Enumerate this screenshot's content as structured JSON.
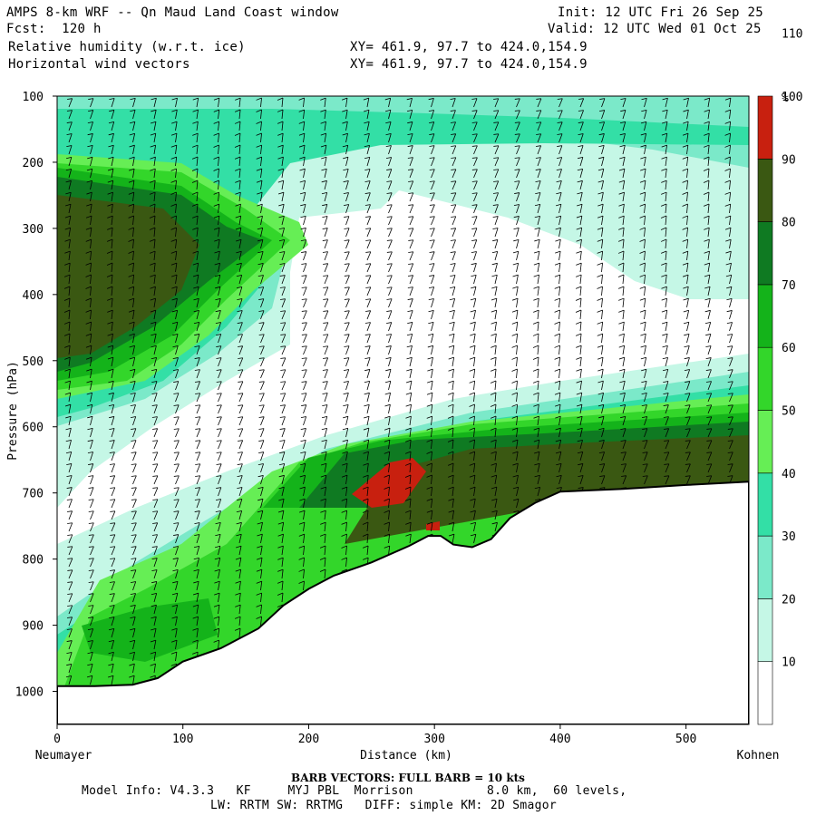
{
  "header": {
    "title": "AMPS 8-km WRF -- Qn Maud Land Coast window",
    "init": "Init: 12 UTC Fri 26 Sep 25",
    "fcst": "Fcst:  120 h",
    "valid": "Valid: 12 UTC Wed 01 Oct 25",
    "field1": "Relative humidity (w.r.t. ice)",
    "field1_xy": "XY= 461.9, 97.7 to 424.0,154.9",
    "field2": "Horizontal wind vectors",
    "field2_xy": "XY= 461.9, 97.7 to 424.0,154.9"
  },
  "footer": {
    "barb_note": "BARB VECTORS:  FULL BARB = 10 kts",
    "model_info": "Model Info: V4.3.3   KF     MYJ PBL  Morrison          8.0 km,  60 levels,",
    "model_info2": "LW: RRTM SW: RRTMG   DIFF: simple KM: 2D Smagor"
  },
  "colors": {
    "c0_30": "#ffffff",
    "c30_40": "#c5f7e6",
    "c40_50": "#7be9c9",
    "c50_60": "#33dfa6",
    "c60_70": "#66ee55",
    "c70_80": "#33d62a",
    "c80_90": "#14b31a",
    "c90_100": "#0f7a22",
    "c100_110": "#3a5812",
    "c110": "#c8200f",
    "terrain": "#ffffff"
  },
  "chart_data": {
    "type": "heatmap",
    "title": "Relative humidity (w.r.t. ice) with horizontal wind vectors - cross section",
    "xlabel": "Distance (km)",
    "ylabel": "Pressure (hPa)",
    "xlim": [
      0,
      550
    ],
    "ylim": [
      1050,
      100
    ],
    "x_ticks": [
      0,
      100,
      200,
      300,
      400,
      500
    ],
    "y_ticks": [
      100,
      200,
      300,
      400,
      500,
      600,
      700,
      800,
      900,
      1000
    ],
    "x_endpoint_labels": {
      "left": "Neumayer",
      "right": "Kohnen"
    },
    "colorbar": {
      "unit": "%",
      "levels": [
        10,
        20,
        30,
        40,
        50,
        60,
        70,
        80,
        90,
        100,
        110
      ],
      "bins": [
        {
          "range": "<30",
          "color_key": "c0_30"
        },
        {
          "range": "30-40",
          "color_key": "c30_40"
        },
        {
          "range": "40-50",
          "color_key": "c40_50"
        },
        {
          "range": "50-60",
          "color_key": "c50_60"
        },
        {
          "range": "60-70",
          "color_key": "c60_70"
        },
        {
          "range": "70-80",
          "color_key": "c70_80"
        },
        {
          "range": "80-90",
          "color_key": "c80_90"
        },
        {
          "range": "90-100",
          "color_key": "c90_100"
        },
        {
          "range": "100-110",
          "color_key": "c100_110"
        },
        {
          "range": ">110",
          "color_key": "c110"
        }
      ]
    },
    "terrain_surface_pressure": [
      [
        0,
        992
      ],
      [
        30,
        992
      ],
      [
        60,
        990
      ],
      [
        80,
        980
      ],
      [
        100,
        955
      ],
      [
        130,
        935
      ],
      [
        160,
        905
      ],
      [
        180,
        870
      ],
      [
        200,
        845
      ],
      [
        220,
        825
      ],
      [
        250,
        805
      ],
      [
        280,
        780
      ],
      [
        295,
        765
      ],
      [
        305,
        765
      ],
      [
        315,
        778
      ],
      [
        330,
        782
      ],
      [
        345,
        770
      ],
      [
        360,
        738
      ],
      [
        380,
        715
      ],
      [
        400,
        698
      ],
      [
        450,
        694
      ],
      [
        500,
        688
      ],
      [
        550,
        683
      ]
    ],
    "wind_barb_note": "FULL BARB = 10 kts"
  }
}
